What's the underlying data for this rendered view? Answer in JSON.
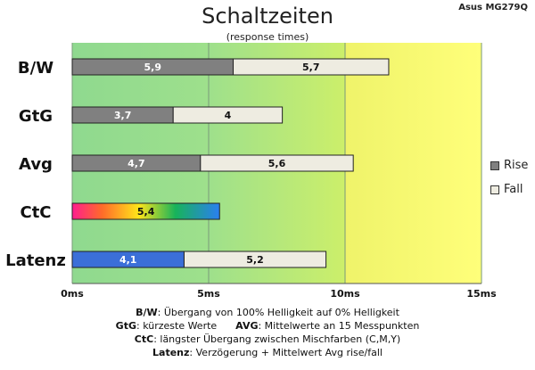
{
  "chart_data": {
    "type": "bar",
    "orientation": "horizontal",
    "stacked": true,
    "title": "Schaltzeiten",
    "subtitle": "(response times)",
    "model": "Asus MG279Q",
    "categories": [
      "B/W",
      "GtG",
      "Avg",
      "CtC",
      "Latenz"
    ],
    "x_ticks": [
      "0ms",
      "5ms",
      "10ms",
      "15ms"
    ],
    "xlim": [
      0,
      15
    ],
    "series": [
      {
        "name": "Rise",
        "values": [
          5.9,
          3.7,
          4.7,
          5.4,
          4.1
        ],
        "labels": [
          "5,9",
          "3,7",
          "4,7",
          "5,4",
          "4,1"
        ],
        "color": "#808080"
      },
      {
        "name": "Fall",
        "values": [
          5.7,
          4.0,
          5.6,
          null,
          5.2
        ],
        "labels": [
          "5,7",
          "4",
          "5,6",
          "",
          "5,2"
        ],
        "color": "#eeece1"
      }
    ],
    "special_fills": {
      "CtC": "rainbow",
      "Latenz": "#3b6fd8"
    },
    "background_zones": [
      {
        "from": 0,
        "to": 10,
        "color": "green-gradient"
      },
      {
        "from": 10,
        "to": 15,
        "color": "yellow"
      }
    ],
    "legend_position": "right",
    "grid": "vertical-lines"
  },
  "notes": [
    {
      "parts": [
        {
          "bold": "B/W",
          "text": ":  Übergang von 100% Helligkeit auf 0% Helligkeit"
        }
      ]
    },
    {
      "parts": [
        {
          "bold": "GtG",
          "text": ": kürzeste  Werte"
        },
        {
          "bold": "AVG",
          "text": ": Mittelwerte  an 15 Messpunkten"
        }
      ]
    },
    {
      "parts": [
        {
          "bold": "CtC",
          "text": ": längster Übergang  zwischen Mischfarben (C,M,Y)"
        }
      ]
    },
    {
      "parts": [
        {
          "bold": "Latenz",
          "text": ": Verzögerung  + Mittelwert Avg rise/fall"
        }
      ]
    }
  ]
}
